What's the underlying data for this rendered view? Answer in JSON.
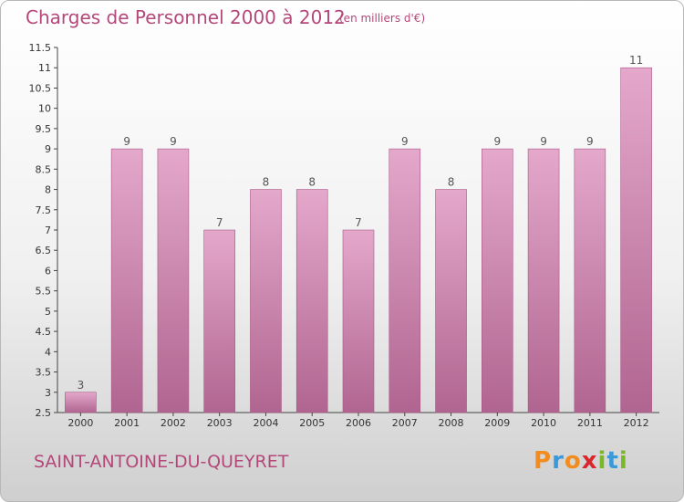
{
  "header": {
    "title": "Charges de Personnel 2000 à 2012",
    "subtitle": "(en milliers d'€)"
  },
  "footer": {
    "commune": "SAINT-ANTOINE-DU-QUEYRET",
    "logo": {
      "letters": [
        "P",
        "r",
        "o",
        "x",
        "i",
        "t",
        "i"
      ],
      "colors": [
        "#f28c1e",
        "#3a9ad9",
        "#f28c1e",
        "#d9262c",
        "#7ab829",
        "#3a9ad9",
        "#7ab829"
      ]
    }
  },
  "chart_data": {
    "type": "bar",
    "title": "Charges de Personnel 2000 à 2012",
    "subtitle": "(en milliers d'€)",
    "categories": [
      "2000",
      "2001",
      "2002",
      "2003",
      "2004",
      "2005",
      "2006",
      "2007",
      "2008",
      "2009",
      "2010",
      "2011",
      "2012"
    ],
    "values": [
      3,
      9,
      9,
      7,
      8,
      8,
      7,
      9,
      8,
      9,
      9,
      9,
      11
    ],
    "value_labels": [
      "3",
      "9",
      "9",
      "7",
      "8",
      "8",
      "7",
      "9",
      "8",
      "9",
      "9",
      "9",
      "11"
    ],
    "ylim": [
      2.5,
      11.5
    ],
    "yticks": [
      "2.5",
      "3",
      "3.5",
      "4",
      "4.5",
      "5",
      "5.5",
      "6",
      "6.5",
      "7",
      "7.5",
      "8",
      "8.5",
      "9",
      "9.5",
      "10",
      "10.5",
      "11",
      "11.5"
    ],
    "xlabel": "",
    "ylabel": "",
    "grid": false,
    "colors": {
      "bar_top": "#e4a8cb",
      "bar_bottom": "#b06590",
      "bar_edge": "#a85887",
      "axis": "#444444"
    }
  }
}
